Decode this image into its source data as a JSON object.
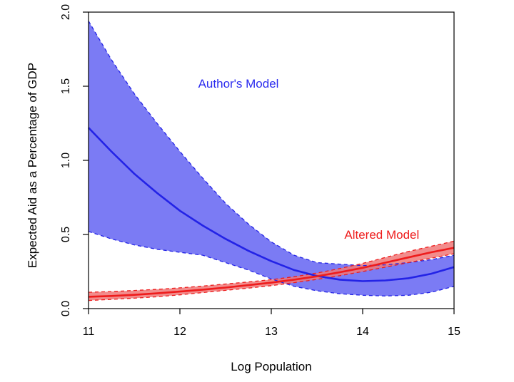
{
  "chart_data": {
    "type": "line",
    "title": "",
    "xlabel": "Log Population",
    "ylabel": "Expected Aid as a Percentage of GDP",
    "xlim": [
      11,
      15
    ],
    "ylim": [
      0,
      2.0
    ],
    "x_ticks": [
      11,
      12,
      13,
      14,
      15
    ],
    "x_tick_labels": [
      "11",
      "12",
      "13",
      "14",
      "15"
    ],
    "y_ticks": [
      0,
      0.5,
      1.0,
      1.5,
      2.0
    ],
    "y_tick_labels": [
      "0.0",
      "0.5",
      "1.0",
      "1.5",
      "2.0"
    ],
    "grid": false,
    "legend": "none",
    "annotations": [
      {
        "text": "Author's Model",
        "x": 12.2,
        "y": 1.49,
        "color": "#2b2bef"
      },
      {
        "text": "Altered Model",
        "x": 13.8,
        "y": 0.47,
        "color": "#ee1c1c"
      }
    ],
    "series": [
      {
        "name": "Author's Model",
        "color": "#2323e6",
        "fill": "#7b7bf4",
        "x": [
          11.0,
          11.25,
          11.5,
          11.75,
          12.0,
          12.25,
          12.5,
          12.75,
          13.0,
          13.25,
          13.5,
          13.75,
          14.0,
          14.25,
          14.5,
          14.75,
          15.0
        ],
        "values": [
          1.22,
          1.06,
          0.91,
          0.78,
          0.66,
          0.56,
          0.47,
          0.39,
          0.32,
          0.26,
          0.22,
          0.195,
          0.185,
          0.19,
          0.205,
          0.235,
          0.28
        ],
        "lower": [
          0.52,
          0.47,
          0.43,
          0.4,
          0.38,
          0.36,
          0.31,
          0.26,
          0.2,
          0.15,
          0.12,
          0.1,
          0.09,
          0.085,
          0.09,
          0.11,
          0.15
        ],
        "upper": [
          1.94,
          1.68,
          1.45,
          1.25,
          1.06,
          0.88,
          0.71,
          0.57,
          0.45,
          0.36,
          0.31,
          0.3,
          0.29,
          0.295,
          0.31,
          0.33,
          0.36
        ]
      },
      {
        "name": "Altered Model",
        "color": "#ee1c1c",
        "fill": "#f07878",
        "x": [
          11.0,
          11.25,
          11.5,
          11.75,
          12.0,
          12.25,
          12.5,
          12.75,
          13.0,
          13.25,
          13.5,
          13.75,
          14.0,
          14.25,
          14.5,
          14.75,
          15.0
        ],
        "values": [
          0.08,
          0.085,
          0.093,
          0.103,
          0.115,
          0.128,
          0.142,
          0.158,
          0.175,
          0.195,
          0.218,
          0.245,
          0.275,
          0.31,
          0.345,
          0.38,
          0.41
        ],
        "lower": [
          0.055,
          0.062,
          0.07,
          0.08,
          0.093,
          0.108,
          0.123,
          0.138,
          0.155,
          0.175,
          0.197,
          0.222,
          0.25,
          0.28,
          0.31,
          0.34,
          0.37
        ],
        "upper": [
          0.11,
          0.115,
          0.122,
          0.13,
          0.14,
          0.152,
          0.166,
          0.18,
          0.195,
          0.215,
          0.24,
          0.27,
          0.305,
          0.345,
          0.385,
          0.42,
          0.455
        ]
      }
    ]
  }
}
